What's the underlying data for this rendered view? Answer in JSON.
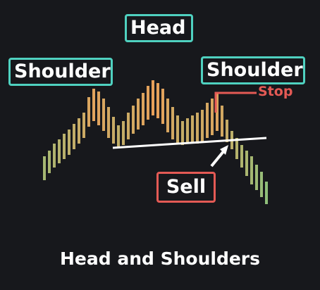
{
  "labels": {
    "head": "Head",
    "left_shoulder": "Shoulder",
    "right_shoulder": "Shoulder",
    "stop": "Stop",
    "sell": "Sell"
  },
  "caption": "Head and Shoulders",
  "colors": {
    "background": "#17181c",
    "label_border": "#4fd1c0",
    "sell_and_stop": "#e45a55",
    "neckline": "#ffffff",
    "bar_low": "#8fbf7a",
    "bar_high": "#e8a05a"
  }
}
